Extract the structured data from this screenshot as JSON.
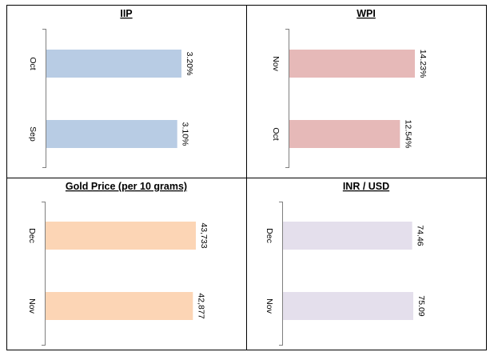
{
  "chart_data": [
    {
      "type": "bar",
      "orientation": "horizontal",
      "title": "IIP",
      "categories": [
        "Oct",
        "Sep"
      ],
      "values": [
        3.2,
        3.1
      ],
      "labels": [
        "3.20%",
        "3.10%"
      ],
      "color": "#b8cce4"
    },
    {
      "type": "bar",
      "orientation": "horizontal",
      "title": "WPI",
      "categories": [
        "Nov",
        "Oct"
      ],
      "values": [
        14.23,
        12.54
      ],
      "labels": [
        "14.23%",
        "12.54%"
      ],
      "color": "#e6b9b8"
    },
    {
      "type": "bar",
      "orientation": "horizontal",
      "title": "Gold Price (per 10 grams)",
      "categories": [
        "Dec",
        "Nov"
      ],
      "values": [
        43733,
        42877
      ],
      "labels": [
        "43,733",
        "42,877"
      ],
      "color": "#fcd5b5"
    },
    {
      "type": "bar",
      "orientation": "horizontal",
      "title": "INR / USD",
      "categories": [
        "Dec",
        "Nov"
      ],
      "values": [
        74.46,
        75.09
      ],
      "labels": [
        "74.46",
        "75.09"
      ],
      "color": "#e4dfec"
    }
  ]
}
